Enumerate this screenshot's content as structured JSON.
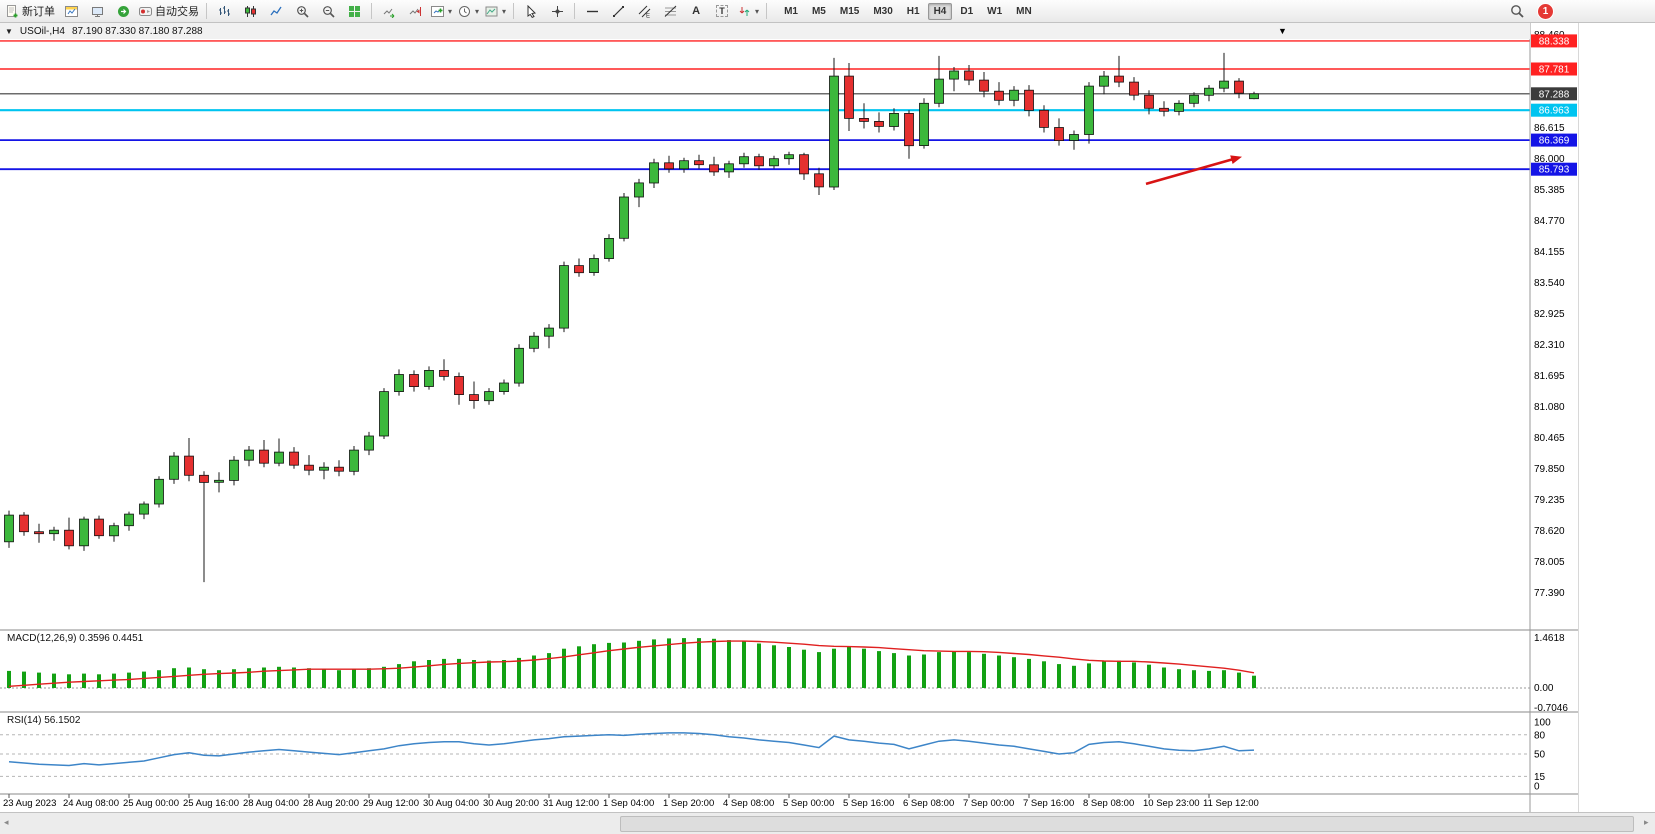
{
  "toolbar": {
    "new_order_label": "新订单",
    "autotrading_label": "自动交易",
    "timeframes": [
      "M1",
      "M5",
      "M15",
      "M30",
      "H1",
      "H4",
      "D1",
      "W1",
      "MN"
    ],
    "active_timeframe": "H4",
    "notification_count": "1"
  },
  "chart": {
    "title": "USOil-,H4",
    "ohlc_text": "87.190 87.330 87.180 87.288"
  },
  "chart_data": {
    "type": "candlestick",
    "symbol": "USOil-",
    "period": "H4",
    "ohlc": {
      "open": "87.190",
      "high": "87.330",
      "low": "87.180",
      "close": "87.288"
    },
    "colors": {
      "bull": "#3cb83c",
      "bear": "#e53030",
      "wick": "#1a1a1a",
      "macd_histogram": "#13a113",
      "macd_signal": "#e02020",
      "rsi_line": "#3d85c8"
    },
    "price_ticks": [
      "88.460",
      "86.615",
      "86.000",
      "85.385",
      "84.770",
      "84.155",
      "83.540",
      "82.925",
      "82.310",
      "81.695",
      "81.080",
      "80.465",
      "79.850",
      "79.235",
      "78.620",
      "78.005",
      "77.390"
    ],
    "horizontal_lines": [
      {
        "price": 88.338,
        "label": "88.338",
        "color": "#ff2222",
        "width": 1.4
      },
      {
        "price": 87.781,
        "label": "87.781",
        "color": "#ff2222",
        "width": 1.4
      },
      {
        "price": 87.288,
        "label": "87.288",
        "color": "#3b3b3b",
        "width": 1.1
      },
      {
        "price": 86.963,
        "label": "86.963",
        "color": "#00c4f0",
        "width": 2.2
      },
      {
        "price": 86.369,
        "label": "86.369",
        "color": "#1414e6",
        "width": 1.8
      },
      {
        "price": 85.793,
        "label": "85.793",
        "color": "#1414e6",
        "width": 1.8
      }
    ],
    "trend_arrow": {
      "from_bar": 75.8,
      "from_price": 85.5,
      "to_bar": 82.2,
      "to_price": 86.04,
      "color": "#d81414"
    },
    "shift_marker_bar": 85,
    "candles_per_label": 4,
    "time_labels": [
      "23 Aug 2023",
      "24 Aug 08:00",
      "25 Aug 00:00",
      "25 Aug 16:00",
      "28 Aug 04:00",
      "28 Aug 20:00",
      "29 Aug 12:00",
      "30 Aug 04:00",
      "30 Aug 20:00",
      "31 Aug 12:00",
      "1 Sep 04:00",
      "1 Sep 20:00",
      "4 Sep 08:00",
      "5 Sep 00:00",
      "5 Sep 16:00",
      "6 Sep 08:00",
      "7 Sep 00:00",
      "7 Sep 16:00",
      "8 Sep 08:00",
      "10 Sep 23:00",
      "11 Sep 12:00"
    ],
    "candles": [
      [
        78.4,
        79.02,
        78.28,
        78.93
      ],
      [
        78.93,
        78.99,
        78.52,
        78.6
      ],
      [
        78.6,
        78.76,
        78.38,
        78.56
      ],
      [
        78.56,
        78.7,
        78.42,
        78.63
      ],
      [
        78.63,
        78.88,
        78.25,
        78.32
      ],
      [
        78.32,
        78.9,
        78.22,
        78.85
      ],
      [
        78.85,
        78.92,
        78.46,
        78.52
      ],
      [
        78.52,
        78.78,
        78.4,
        78.72
      ],
      [
        78.72,
        79.0,
        78.62,
        78.95
      ],
      [
        78.95,
        79.2,
        78.85,
        79.15
      ],
      [
        79.15,
        79.7,
        79.08,
        79.64
      ],
      [
        79.64,
        80.18,
        79.55,
        80.1
      ],
      [
        80.1,
        80.46,
        79.6,
        79.72
      ],
      [
        79.72,
        79.8,
        77.6,
        79.58
      ],
      [
        79.58,
        79.78,
        79.38,
        79.62
      ],
      [
        79.62,
        80.1,
        79.52,
        80.02
      ],
      [
        80.02,
        80.3,
        79.9,
        80.22
      ],
      [
        80.22,
        80.42,
        79.88,
        79.96
      ],
      [
        79.96,
        80.45,
        79.9,
        80.18
      ],
      [
        80.18,
        80.28,
        79.85,
        79.92
      ],
      [
        79.92,
        80.12,
        79.72,
        79.82
      ],
      [
        79.82,
        79.98,
        79.64,
        79.88
      ],
      [
        79.88,
        80.02,
        79.7,
        79.8
      ],
      [
        79.8,
        80.3,
        79.72,
        80.22
      ],
      [
        80.22,
        80.58,
        80.12,
        80.5
      ],
      [
        80.5,
        81.45,
        80.44,
        81.38
      ],
      [
        81.38,
        81.82,
        81.3,
        81.72
      ],
      [
        81.72,
        81.8,
        81.38,
        81.48
      ],
      [
        81.48,
        81.88,
        81.42,
        81.8
      ],
      [
        81.8,
        82.02,
        81.6,
        81.68
      ],
      [
        81.68,
        81.76,
        81.12,
        81.32
      ],
      [
        81.32,
        81.58,
        81.04,
        81.2
      ],
      [
        81.2,
        81.45,
        81.12,
        81.38
      ],
      [
        81.38,
        81.62,
        81.32,
        81.55
      ],
      [
        81.55,
        82.32,
        81.48,
        82.24
      ],
      [
        82.24,
        82.56,
        82.16,
        82.48
      ],
      [
        82.48,
        82.72,
        82.24,
        82.64
      ],
      [
        82.64,
        83.96,
        82.56,
        83.88
      ],
      [
        83.88,
        84.02,
        83.66,
        83.74
      ],
      [
        83.74,
        84.1,
        83.68,
        84.02
      ],
      [
        84.02,
        84.5,
        83.96,
        84.42
      ],
      [
        84.42,
        85.32,
        84.36,
        85.24
      ],
      [
        85.24,
        85.6,
        85.04,
        85.52
      ],
      [
        85.52,
        86.0,
        85.42,
        85.92
      ],
      [
        85.92,
        86.06,
        85.72,
        85.8
      ],
      [
        85.8,
        86.02,
        85.72,
        85.96
      ],
      [
        85.96,
        86.08,
        85.8,
        85.88
      ],
      [
        85.88,
        86.04,
        85.66,
        85.74
      ],
      [
        85.74,
        85.96,
        85.62,
        85.9
      ],
      [
        85.9,
        86.12,
        85.82,
        86.04
      ],
      [
        86.04,
        86.1,
        85.78,
        85.86
      ],
      [
        85.86,
        86.06,
        85.8,
        86.0
      ],
      [
        86.0,
        86.14,
        85.88,
        86.08
      ],
      [
        86.08,
        86.12,
        85.58,
        85.7
      ],
      [
        85.7,
        85.82,
        85.28,
        85.44
      ],
      [
        85.44,
        88.0,
        85.38,
        87.64
      ],
      [
        87.64,
        87.9,
        86.55,
        86.8
      ],
      [
        86.8,
        87.1,
        86.6,
        86.74
      ],
      [
        86.74,
        86.92,
        86.52,
        86.64
      ],
      [
        86.64,
        87.0,
        86.56,
        86.9
      ],
      [
        86.9,
        86.96,
        86.0,
        86.26
      ],
      [
        86.26,
        87.2,
        86.2,
        87.1
      ],
      [
        87.1,
        88.04,
        87.02,
        87.58
      ],
      [
        87.58,
        87.82,
        87.34,
        87.74
      ],
      [
        87.74,
        87.86,
        87.46,
        87.56
      ],
      [
        87.56,
        87.72,
        87.22,
        87.34
      ],
      [
        87.34,
        87.52,
        87.06,
        87.16
      ],
      [
        87.16,
        87.44,
        87.04,
        87.36
      ],
      [
        87.36,
        87.46,
        86.84,
        86.96
      ],
      [
        86.96,
        87.06,
        86.52,
        86.62
      ],
      [
        86.62,
        86.8,
        86.26,
        86.36
      ],
      [
        86.36,
        86.56,
        86.18,
        86.48
      ],
      [
        86.48,
        87.52,
        86.3,
        87.44
      ],
      [
        87.44,
        87.74,
        87.28,
        87.64
      ],
      [
        87.64,
        88.04,
        87.42,
        87.52
      ],
      [
        87.52,
        87.62,
        87.16,
        87.26
      ],
      [
        87.26,
        87.36,
        86.88,
        87.0
      ],
      [
        87.0,
        87.14,
        86.84,
        86.94
      ],
      [
        86.94,
        87.16,
        86.86,
        87.1
      ],
      [
        87.1,
        87.32,
        87.02,
        87.26
      ],
      [
        87.26,
        87.46,
        87.14,
        87.4
      ],
      [
        87.4,
        88.1,
        87.32,
        87.54
      ],
      [
        87.54,
        87.6,
        87.2,
        87.3
      ],
      [
        87.19,
        87.33,
        87.18,
        87.288
      ]
    ],
    "indicators": {
      "macd": {
        "label": "MACD(12,26,9)",
        "values_label": "0.3596 0.4451",
        "main_value": 0.3596,
        "signal_value": 0.4451,
        "axis_labels": [
          "1.4618",
          "0.00",
          "-0.7046"
        ],
        "range": [
          -0.7046,
          1.4618
        ],
        "histogram": [
          0.5,
          0.48,
          0.45,
          0.42,
          0.4,
          0.42,
          0.4,
          0.42,
          0.45,
          0.48,
          0.52,
          0.58,
          0.6,
          0.55,
          0.52,
          0.55,
          0.58,
          0.6,
          0.62,
          0.6,
          0.58,
          0.55,
          0.52,
          0.55,
          0.58,
          0.62,
          0.7,
          0.78,
          0.82,
          0.85,
          0.85,
          0.82,
          0.8,
          0.82,
          0.88,
          0.95,
          1.02,
          1.15,
          1.22,
          1.28,
          1.32,
          1.33,
          1.38,
          1.42,
          1.45,
          1.46,
          1.46,
          1.44,
          1.4,
          1.36,
          1.3,
          1.25,
          1.2,
          1.12,
          1.05,
          1.15,
          1.2,
          1.15,
          1.08,
          1.02,
          0.95,
          0.98,
          1.05,
          1.08,
          1.05,
          1.0,
          0.95,
          0.9,
          0.85,
          0.78,
          0.7,
          0.65,
          0.72,
          0.78,
          0.8,
          0.75,
          0.68,
          0.6,
          0.55,
          0.52,
          0.5,
          0.52,
          0.45,
          0.36
        ],
        "signal": [
          0.05,
          0.08,
          0.11,
          0.14,
          0.17,
          0.19,
          0.21,
          0.23,
          0.25,
          0.28,
          0.31,
          0.34,
          0.37,
          0.4,
          0.42,
          0.44,
          0.46,
          0.49,
          0.51,
          0.53,
          0.55,
          0.55,
          0.55,
          0.55,
          0.55,
          0.56,
          0.58,
          0.61,
          0.65,
          0.69,
          0.72,
          0.74,
          0.76,
          0.77,
          0.79,
          0.82,
          0.86,
          0.91,
          0.97,
          1.03,
          1.09,
          1.14,
          1.19,
          1.23,
          1.27,
          1.31,
          1.34,
          1.36,
          1.37,
          1.37,
          1.36,
          1.34,
          1.31,
          1.28,
          1.24,
          1.22,
          1.21,
          1.2,
          1.18,
          1.15,
          1.12,
          1.09,
          1.08,
          1.07,
          1.07,
          1.06,
          1.04,
          1.01,
          0.98,
          0.94,
          0.9,
          0.85,
          0.81,
          0.79,
          0.78,
          0.78,
          0.76,
          0.73,
          0.7,
          0.66,
          0.62,
          0.58,
          0.52,
          0.445
        ]
      },
      "rsi": {
        "label": "RSI(14)",
        "value_label": "56.1502",
        "value": 56.1502,
        "levels": [
          80,
          50,
          15
        ],
        "axis_labels": [
          "100",
          "80",
          "50",
          "15",
          "0"
        ],
        "range": [
          0,
          100
        ],
        "values": [
          38,
          36,
          34,
          33,
          32,
          35,
          33,
          35,
          37,
          39,
          44,
          49,
          52,
          48,
          47,
          50,
          53,
          55,
          57,
          55,
          53,
          51,
          49,
          52,
          55,
          58,
          63,
          66,
          68,
          69,
          69,
          66,
          64,
          66,
          69,
          72,
          74,
          77,
          78,
          79,
          80,
          79,
          81,
          82,
          83,
          83,
          82,
          80,
          77,
          75,
          72,
          70,
          68,
          64,
          60,
          78,
          72,
          70,
          67,
          65,
          58,
          64,
          70,
          72,
          70,
          67,
          64,
          62,
          58,
          54,
          50,
          52,
          65,
          68,
          69,
          66,
          62,
          58,
          56,
          55,
          58,
          62,
          55,
          56.15
        ]
      }
    }
  }
}
